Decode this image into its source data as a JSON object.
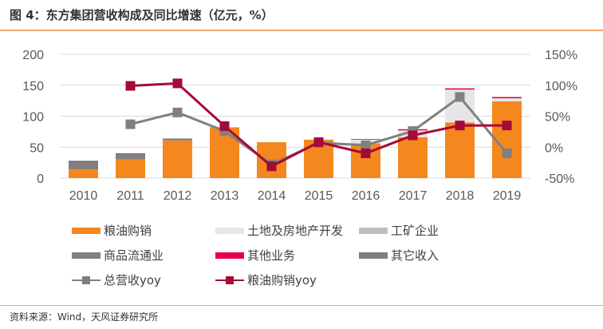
{
  "title": "图 4：东方集团营收构成及同比增速（亿元，%）",
  "source": "资料来源：Wind，天风证券研究所",
  "chart_data": {
    "type": "bar",
    "stacked": true,
    "categories": [
      "2010",
      "2011",
      "2012",
      "2013",
      "2014",
      "2015",
      "2016",
      "2017",
      "2018",
      "2019"
    ],
    "ylim": [
      0,
      200
    ],
    "yticks": [
      "0",
      "50",
      "100",
      "150",
      "200"
    ],
    "y2lim": [
      -50,
      150
    ],
    "y2ticks": [
      "-50%",
      "0%",
      "50%",
      "100%",
      "150%"
    ],
    "grid": true,
    "legend_position": "bottom",
    "series": [
      {
        "name": "粮油购销",
        "kind": "bar",
        "color": "#F5871F",
        "values": [
          14,
          30,
          61,
          82,
          58,
          62,
          56,
          66,
          90,
          124
        ]
      },
      {
        "name": "土地及房地产开发",
        "kind": "bar",
        "color": "#E6E6E6",
        "values": [
          0,
          0,
          0,
          0,
          0,
          0,
          6,
          11,
          53,
          5
        ]
      },
      {
        "name": "工矿企业",
        "kind": "bar",
        "color": "#BFBFBF",
        "values": [
          0,
          0,
          0,
          0,
          0,
          0,
          0,
          0,
          0,
          0
        ]
      },
      {
        "name": "商品流通业",
        "kind": "bar",
        "color": "#808080",
        "values": [
          12,
          9,
          3,
          0,
          0,
          0,
          0,
          0,
          0,
          0
        ]
      },
      {
        "name": "其他业务",
        "kind": "bar",
        "color": "#E4004F",
        "values": [
          1,
          1,
          0,
          0,
          0,
          0,
          1,
          2,
          2,
          2
        ]
      },
      {
        "name": "其它收入",
        "kind": "bar",
        "color": "#7F7F7F",
        "values": [
          1,
          0,
          0,
          0,
          0,
          0,
          0,
          0,
          0,
          0
        ]
      },
      {
        "name": "总营收yoy",
        "kind": "line",
        "axis": "right",
        "color": "#808080",
        "values": [
          null,
          37,
          56,
          26,
          -28,
          7,
          3,
          26,
          81,
          -10
        ]
      },
      {
        "name": "粮油购销yoy",
        "kind": "line",
        "axis": "right",
        "color": "#A50A37",
        "values": [
          null,
          99,
          103,
          34,
          -31,
          8,
          -10,
          19,
          35,
          35
        ]
      }
    ]
  }
}
